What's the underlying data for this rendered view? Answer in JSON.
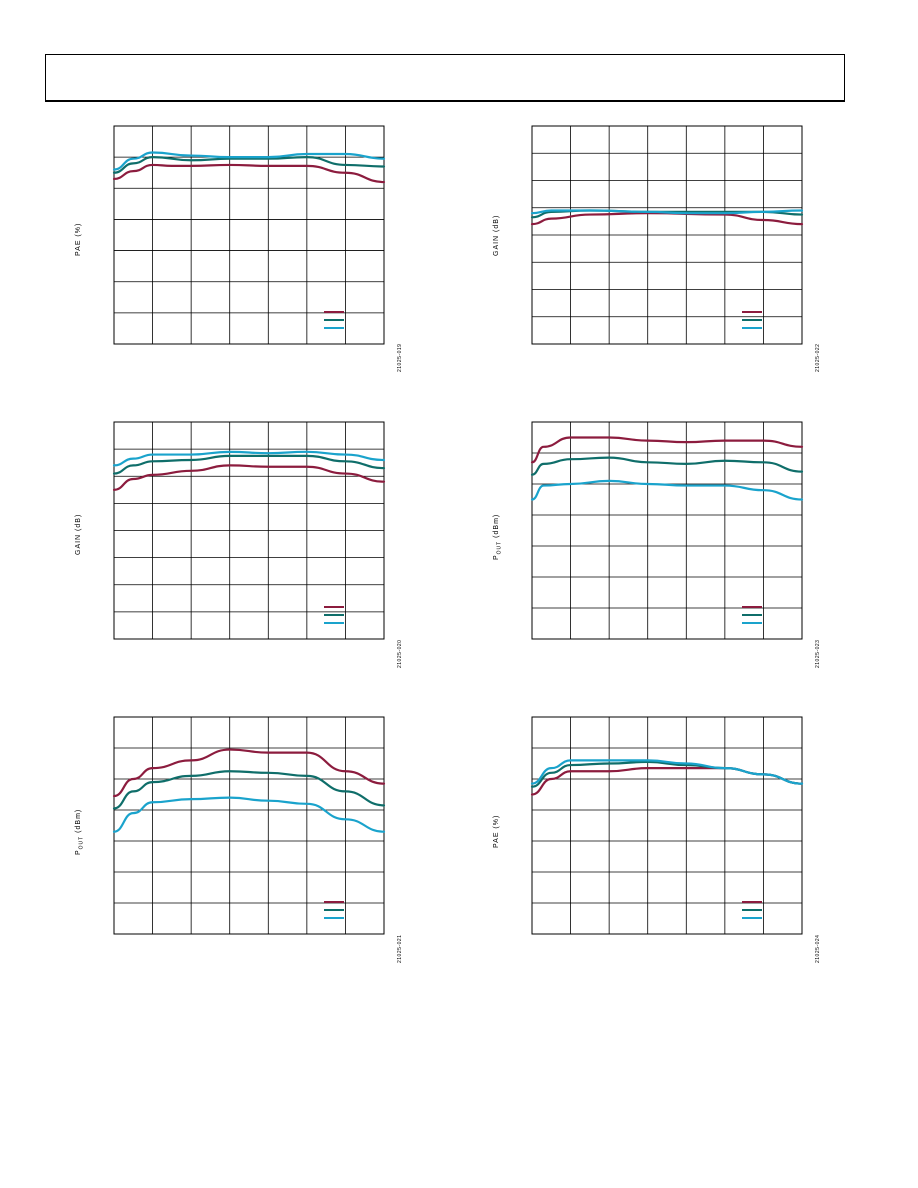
{
  "colors": {
    "red": "#8c1c3e",
    "teal": "#0f6e6a",
    "cyan": "#1aa3cc",
    "grid": "#000000"
  },
  "chart_data": [
    {
      "type": "line",
      "ylabel": "PAE (%)",
      "figure_id": "21025-019",
      "x_divisions": 7,
      "y_divisions": 7,
      "legend_placement": "bottom-right",
      "series": [
        {
          "color": "red",
          "points": [
            [
              0,
              5.3
            ],
            [
              0.5,
              5.55
            ],
            [
              1,
              5.75
            ],
            [
              1.5,
              5.72
            ],
            [
              2,
              5.72
            ],
            [
              3,
              5.75
            ],
            [
              4,
              5.72
            ],
            [
              5,
              5.72
            ],
            [
              6,
              5.5
            ],
            [
              7,
              5.2
            ]
          ]
        },
        {
          "color": "teal",
          "points": [
            [
              0,
              5.5
            ],
            [
              0.5,
              5.8
            ],
            [
              1,
              6.0
            ],
            [
              2,
              5.9
            ],
            [
              3,
              5.95
            ],
            [
              4,
              5.95
            ],
            [
              5,
              6.0
            ],
            [
              6,
              5.75
            ],
            [
              7,
              5.7
            ]
          ]
        },
        {
          "color": "cyan",
          "points": [
            [
              0,
              5.6
            ],
            [
              0.5,
              5.95
            ],
            [
              1,
              6.15
            ],
            [
              2,
              6.05
            ],
            [
              3,
              6.0
            ],
            [
              4,
              6.0
            ],
            [
              5,
              6.1
            ],
            [
              6,
              6.1
            ],
            [
              7,
              5.95
            ]
          ]
        }
      ]
    },
    {
      "type": "line",
      "ylabel": "GAIN (dB)",
      "figure_id": "21025-022",
      "x_divisions": 7,
      "y_divisions": 8,
      "legend_placement": "bottom-right",
      "series": [
        {
          "color": "red",
          "points": [
            [
              0,
              4.4
            ],
            [
              0.5,
              4.6
            ],
            [
              1.5,
              4.75
            ],
            [
              3,
              4.8
            ],
            [
              5,
              4.75
            ],
            [
              6,
              4.55
            ],
            [
              7,
              4.4
            ]
          ]
        },
        {
          "color": "teal",
          "points": [
            [
              0,
              4.65
            ],
            [
              0.5,
              4.85
            ],
            [
              1.5,
              4.9
            ],
            [
              3,
              4.85
            ],
            [
              5,
              4.85
            ],
            [
              6,
              4.85
            ],
            [
              7,
              4.75
            ]
          ]
        },
        {
          "color": "cyan",
          "points": [
            [
              0,
              4.8
            ],
            [
              0.5,
              4.9
            ],
            [
              1.5,
              4.9
            ],
            [
              3,
              4.85
            ],
            [
              4,
              4.8
            ],
            [
              5,
              4.8
            ],
            [
              6,
              4.85
            ],
            [
              7,
              4.9
            ]
          ]
        }
      ]
    },
    {
      "type": "line",
      "ylabel": "GAIN (dB)",
      "figure_id": "21025-020",
      "x_divisions": 7,
      "y_divisions": 8,
      "legend_placement": "bottom-right",
      "series": [
        {
          "color": "red",
          "points": [
            [
              0,
              5.5
            ],
            [
              0.5,
              5.9
            ],
            [
              1,
              6.05
            ],
            [
              2,
              6.2
            ],
            [
              3,
              6.4
            ],
            [
              4,
              6.35
            ],
            [
              5,
              6.35
            ],
            [
              6,
              6.1
            ],
            [
              7,
              5.8
            ]
          ]
        },
        {
          "color": "teal",
          "points": [
            [
              0,
              6.1
            ],
            [
              0.5,
              6.4
            ],
            [
              1,
              6.55
            ],
            [
              2,
              6.6
            ],
            [
              3,
              6.75
            ],
            [
              4,
              6.75
            ],
            [
              5,
              6.75
            ],
            [
              6,
              6.55
            ],
            [
              7,
              6.3
            ]
          ]
        },
        {
          "color": "cyan",
          "points": [
            [
              0,
              6.4
            ],
            [
              0.5,
              6.65
            ],
            [
              1,
              6.8
            ],
            [
              2,
              6.8
            ],
            [
              3,
              6.9
            ],
            [
              4,
              6.85
            ],
            [
              5,
              6.9
            ],
            [
              6,
              6.8
            ],
            [
              7,
              6.6
            ]
          ]
        }
      ]
    },
    {
      "type": "line",
      "ylabel": "P<sub>OUT</sub> (dBm)",
      "figure_id": "21025-023",
      "x_divisions": 7,
      "y_divisions": 7,
      "legend_placement": "bottom-right",
      "series": [
        {
          "color": "red",
          "points": [
            [
              0,
              5.7
            ],
            [
              0.3,
              6.2
            ],
            [
              1,
              6.5
            ],
            [
              2,
              6.5
            ],
            [
              3,
              6.4
            ],
            [
              4,
              6.35
            ],
            [
              5,
              6.4
            ],
            [
              6,
              6.4
            ],
            [
              7,
              6.2
            ]
          ]
        },
        {
          "color": "teal",
          "points": [
            [
              0,
              5.3
            ],
            [
              0.3,
              5.65
            ],
            [
              1,
              5.8
            ],
            [
              2,
              5.85
            ],
            [
              3,
              5.7
            ],
            [
              4,
              5.65
            ],
            [
              5,
              5.75
            ],
            [
              6,
              5.7
            ],
            [
              7,
              5.4
            ]
          ]
        },
        {
          "color": "cyan",
          "points": [
            [
              0,
              4.5
            ],
            [
              0.3,
              4.95
            ],
            [
              1,
              5.0
            ],
            [
              2,
              5.1
            ],
            [
              3,
              5.0
            ],
            [
              4,
              4.95
            ],
            [
              5,
              4.95
            ],
            [
              6,
              4.8
            ],
            [
              7,
              4.5
            ]
          ]
        }
      ]
    },
    {
      "type": "line",
      "ylabel": "P<sub>OUT</sub> (dBm)",
      "figure_id": "21025-021",
      "x_divisions": 7,
      "y_divisions": 7,
      "legend_placement": "bottom-right",
      "series": [
        {
          "color": "red",
          "points": [
            [
              0,
              4.45
            ],
            [
              0.5,
              5.0
            ],
            [
              1,
              5.35
            ],
            [
              2,
              5.6
            ],
            [
              3,
              5.95
            ],
            [
              4,
              5.85
            ],
            [
              5,
              5.85
            ],
            [
              6,
              5.25
            ],
            [
              7,
              4.85
            ]
          ]
        },
        {
          "color": "teal",
          "points": [
            [
              0,
              4.05
            ],
            [
              0.5,
              4.6
            ],
            [
              1,
              4.9
            ],
            [
              2,
              5.1
            ],
            [
              3,
              5.25
            ],
            [
              4,
              5.2
            ],
            [
              5,
              5.1
            ],
            [
              6,
              4.6
            ],
            [
              7,
              4.15
            ]
          ]
        },
        {
          "color": "cyan",
          "points": [
            [
              0,
              3.3
            ],
            [
              0.5,
              3.9
            ],
            [
              1,
              4.25
            ],
            [
              2,
              4.35
            ],
            [
              3,
              4.4
            ],
            [
              4,
              4.3
            ],
            [
              5,
              4.2
            ],
            [
              6,
              3.7
            ],
            [
              7,
              3.3
            ]
          ]
        }
      ]
    },
    {
      "type": "line",
      "ylabel": "PAE (%)",
      "figure_id": "21025-024",
      "x_divisions": 7,
      "y_divisions": 7,
      "legend_placement": "bottom-right",
      "series": [
        {
          "color": "red",
          "points": [
            [
              0,
              4.5
            ],
            [
              0.5,
              5.0
            ],
            [
              1,
              5.25
            ],
            [
              2,
              5.25
            ],
            [
              3,
              5.35
            ],
            [
              4,
              5.35
            ],
            [
              5,
              5.35
            ],
            [
              6,
              5.15
            ],
            [
              7,
              4.85
            ]
          ]
        },
        {
          "color": "teal",
          "points": [
            [
              0,
              4.75
            ],
            [
              0.5,
              5.2
            ],
            [
              1,
              5.45
            ],
            [
              2,
              5.5
            ],
            [
              3,
              5.55
            ],
            [
              4,
              5.45
            ],
            [
              5,
              5.35
            ],
            [
              6,
              5.15
            ],
            [
              7,
              4.85
            ]
          ]
        },
        {
          "color": "cyan",
          "points": [
            [
              0,
              4.85
            ],
            [
              0.5,
              5.35
            ],
            [
              1,
              5.6
            ],
            [
              2,
              5.6
            ],
            [
              3,
              5.6
            ],
            [
              4,
              5.5
            ],
            [
              5,
              5.35
            ],
            [
              6,
              5.15
            ],
            [
              7,
              4.85
            ]
          ]
        }
      ]
    }
  ]
}
